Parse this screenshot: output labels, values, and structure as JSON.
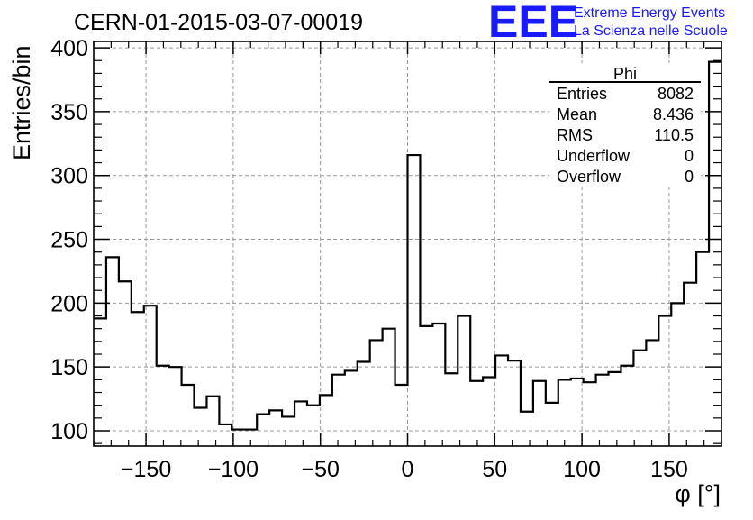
{
  "title": "CERN-01-2015-03-07-00019",
  "logo": {
    "letters": "EEE",
    "line1": "Extreme Energy Events",
    "line2": "La Scienza nelle Scuole",
    "color": "#1a1aff"
  },
  "stats": {
    "name": "Phi",
    "rows": [
      {
        "label": "Entries",
        "value": "8082"
      },
      {
        "label": "Mean",
        "value": "8.436"
      },
      {
        "label": "RMS",
        "value": "110.5"
      },
      {
        "label": "Underflow",
        "value": "0"
      },
      {
        "label": "Overflow",
        "value": "0"
      }
    ]
  },
  "chart_data": {
    "type": "histogram",
    "title": "CERN-01-2015-03-07-00019",
    "xlabel": "φ [°]",
    "ylabel": "Entries/bin",
    "xlim": [
      -180,
      180
    ],
    "ylim": [
      88,
      405
    ],
    "grid": true,
    "x_ticks": [
      -150,
      -100,
      -50,
      0,
      50,
      100,
      150
    ],
    "x_tick_labels": [
      "−150",
      "−100",
      "−50",
      "0",
      "50",
      "100",
      "150"
    ],
    "y_ticks": [
      100,
      150,
      200,
      250,
      300,
      350,
      400
    ],
    "bin_width": 7.2,
    "bin_edges_start": -180,
    "values": [
      188,
      236,
      217,
      193,
      198,
      151,
      150,
      136,
      118,
      127,
      105,
      101,
      101,
      113,
      116,
      111,
      123,
      120,
      128,
      144,
      147,
      154,
      171,
      180,
      136,
      316,
      182,
      184,
      145,
      190,
      139,
      142,
      159,
      155,
      115,
      139,
      122,
      140,
      141,
      138,
      144,
      146,
      151,
      163,
      171,
      190,
      200,
      216,
      240,
      389
    ]
  }
}
